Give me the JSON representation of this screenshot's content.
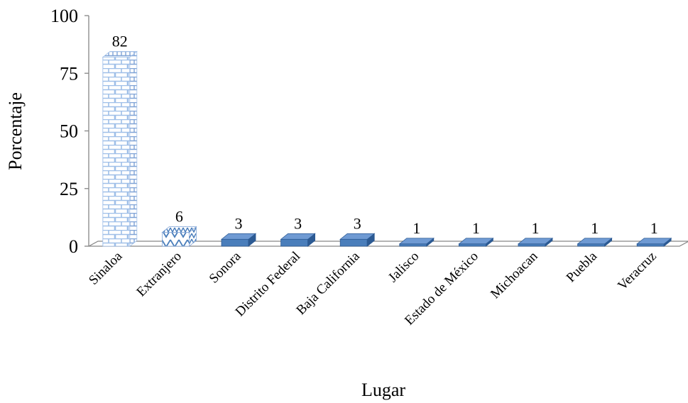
{
  "chart_data": {
    "type": "bar",
    "style": "3d-column",
    "title": "",
    "xlabel": "Lugar",
    "ylabel": "Porcentaje",
    "ylim": [
      0,
      100
    ],
    "yticks": [
      0,
      25,
      50,
      75,
      100
    ],
    "grid": false,
    "legend": "none",
    "categories": [
      "Sinaloa",
      "Extranjero",
      "Sonora",
      "Distrito Federal",
      "Baja California",
      "Jalisco",
      "Estado de México",
      "Michoacan",
      "Puebla",
      "Veracruz"
    ],
    "values": [
      82,
      6,
      3,
      3,
      3,
      1,
      1,
      1,
      1,
      1
    ],
    "data_labels": [
      "82",
      "6",
      "3",
      "3",
      "3",
      "1",
      "1",
      "1",
      "1",
      "1"
    ],
    "bar_fills": [
      "brick",
      "zigzag",
      "solid",
      "solid",
      "solid",
      "solid",
      "solid",
      "solid",
      "solid",
      "solid"
    ],
    "colors": {
      "bar_front": "#4a7ebb",
      "bar_top": "#6f9ad3",
      "bar_side": "#2c5a93",
      "brick": "#9fbfe8",
      "axis": "#868686"
    }
  }
}
